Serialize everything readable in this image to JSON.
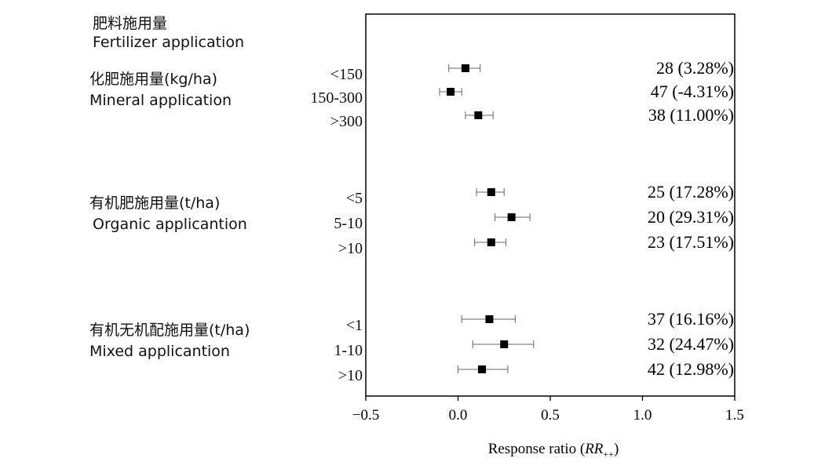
{
  "chart_data": {
    "type": "forest",
    "header": {
      "zh": "肥料施用量",
      "en": "Fertilizer application"
    },
    "groups": [
      {
        "zh": "化肥施用量(kg/ha)",
        "en": "Mineral application",
        "rows": [
          {
            "level": "<150",
            "rr": 0.04,
            "ci": [
              -0.05,
              0.12
            ],
            "label": "28 (3.28%)"
          },
          {
            "level": "150-300",
            "rr": -0.04,
            "ci": [
              -0.1,
              0.02
            ],
            "label": "47 (-4.31%)"
          },
          {
            "level": ">300",
            "rr": 0.11,
            "ci": [
              0.04,
              0.19
            ],
            "label": "38 (11.00%)"
          }
        ]
      },
      {
        "zh": "有机肥施用量(t/ha)",
        "en": "Organic applicantion",
        "rows": [
          {
            "level": "<5",
            "rr": 0.18,
            "ci": [
              0.1,
              0.25
            ],
            "label": "25 (17.28%)"
          },
          {
            "level": "5-10",
            "rr": 0.29,
            "ci": [
              0.2,
              0.39
            ],
            "label": "20 (29.31%)"
          },
          {
            "level": ">10",
            "rr": 0.18,
            "ci": [
              0.09,
              0.26
            ],
            "label": "23 (17.51%)"
          }
        ]
      },
      {
        "zh": "有机无机配施用量(t/ha)",
        "en": "Mixed applicantion",
        "rows": [
          {
            "level": "<1",
            "rr": 0.17,
            "ci": [
              0.02,
              0.31
            ],
            "label": "37 (16.16%)"
          },
          {
            "level": "1-10",
            "rr": 0.25,
            "ci": [
              0.08,
              0.41
            ],
            "label": "32 (24.47%)"
          },
          {
            "level": ">10",
            "rr": 0.13,
            "ci": [
              0.0,
              0.27
            ],
            "label": "42 (12.98%)"
          }
        ]
      }
    ],
    "x_ticks": [
      "−0.5",
      "0.0",
      "0.5",
      "1.0",
      "1.5"
    ],
    "xlim": [
      -0.5,
      1.5
    ],
    "xlabel_pre": "Response ratio (",
    "xlabel_var": "RR",
    "xlabel_sub": "++",
    "xlabel_post": ")",
    "grid": false,
    "legend": "none"
  }
}
